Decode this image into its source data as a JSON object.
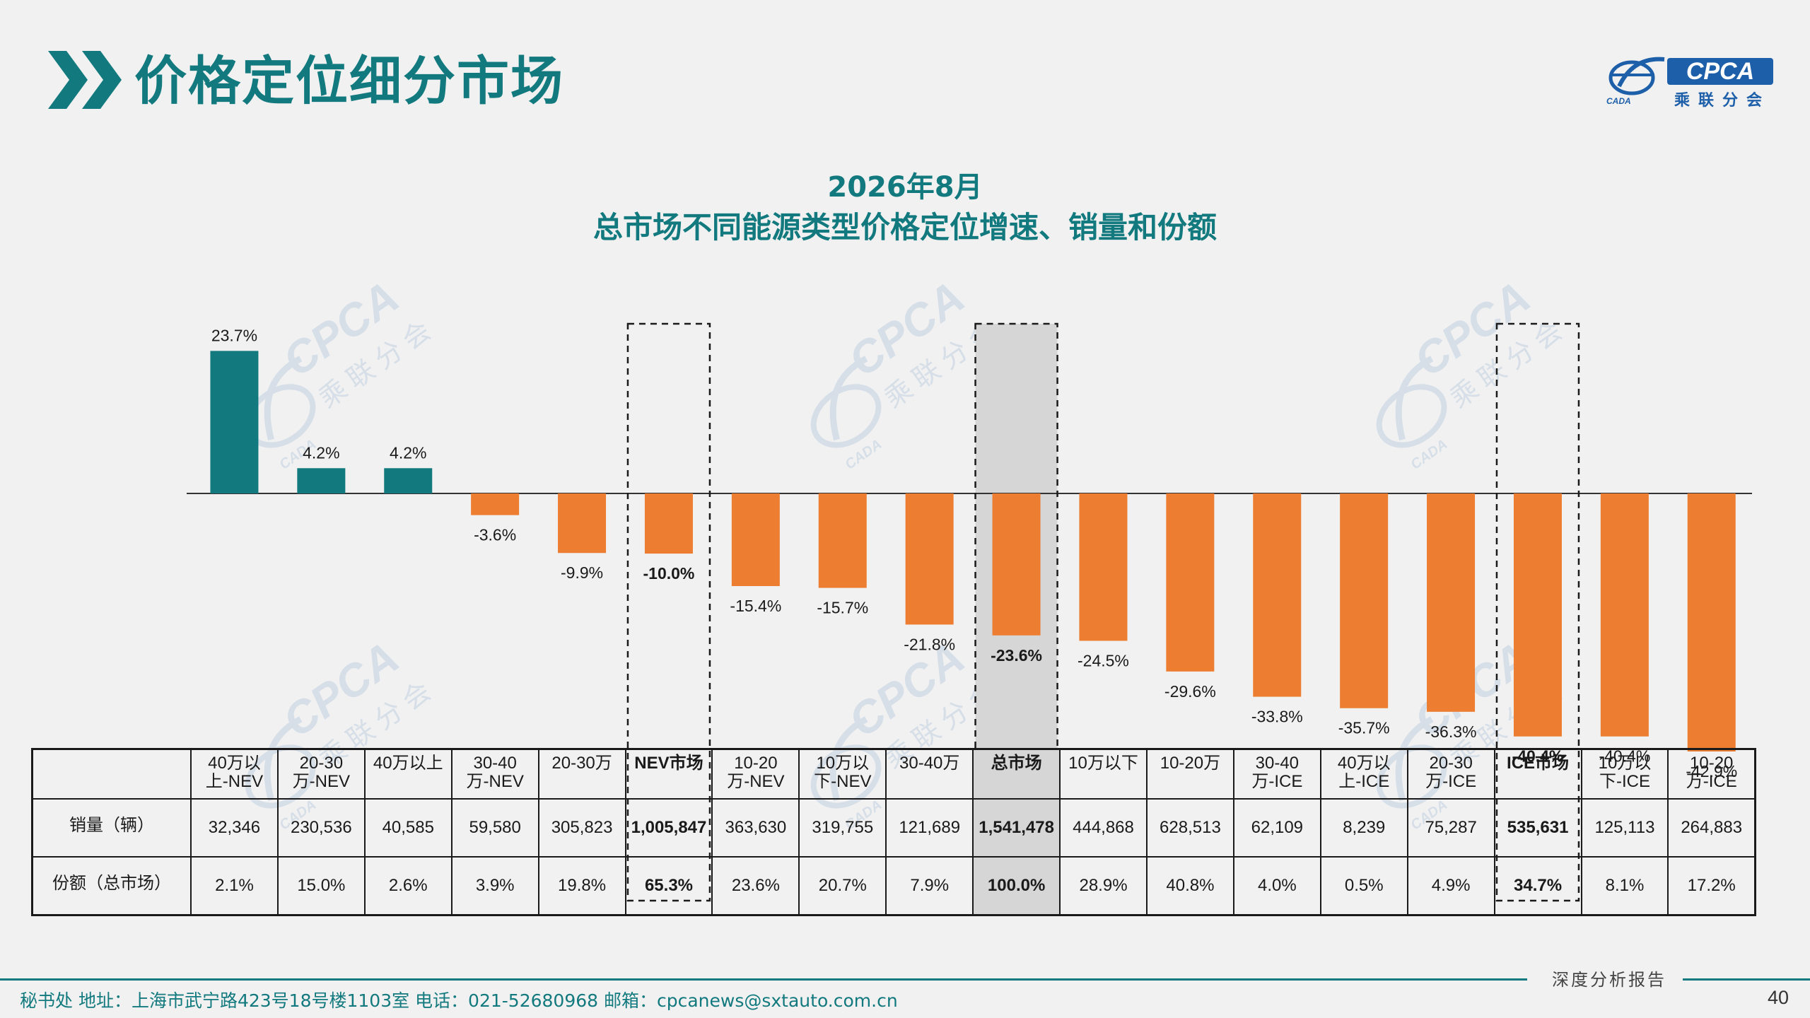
{
  "header": {
    "title": "价格定位细分市场",
    "brand": {
      "logo_text": "CPCA",
      "logo_cn": "乘联分会",
      "logo_sub": "CADA"
    }
  },
  "chart_data": {
    "type": "bar",
    "title": "2026年8月",
    "subtitle": "总市场不同能源类型价格定位增速、销量和份额",
    "categories": [
      "40万以上-NEV",
      "20-30万-NEV",
      "40万以上",
      "30-40万-NEV",
      "20-30万",
      "NEV市场",
      "10-20万-NEV",
      "10万以下-NEV",
      "30-40万",
      "总市场",
      "10万以下",
      "10-20万",
      "30-40万-ICE",
      "40万以上-ICE",
      "20-30万-ICE",
      "ICE市场",
      "10万以下-ICE",
      "10-20万-ICE"
    ],
    "values": [
      23.7,
      4.2,
      4.2,
      -3.6,
      -9.9,
      -10.0,
      -15.4,
      -15.7,
      -21.8,
      -23.6,
      -24.5,
      -29.6,
      -33.8,
      -35.7,
      -36.3,
      -40.4,
      -40.4,
      -42.9
    ],
    "labels": [
      "23.7%",
      "4.2%",
      "4.2%",
      "-3.6%",
      "-9.9%",
      "-10.0%",
      "-15.4%",
      "-15.7%",
      "-21.8%",
      "-23.6%",
      "-24.5%",
      "-29.6%",
      "-33.8%",
      "-35.7%",
      "-36.3%",
      "-40.4%",
      "-40.4%",
      "-42.9%"
    ],
    "colors": {
      "positive": "#127a7e",
      "negative": "#ed7d31",
      "axis": "#333333",
      "highlight_fill": "#d6d6d6"
    },
    "bold_indices": [
      5,
      9,
      15
    ],
    "dashed_box_indices": [
      5,
      9,
      15
    ],
    "shaded_index": 9,
    "ylim": [
      -45,
      30
    ],
    "grid": false,
    "legend": "none"
  },
  "table": {
    "headers": [
      "40万以\n上-NEV",
      "20-30\n万-NEV",
      "40万以上",
      "30-40\n万-NEV",
      "20-30万",
      "NEV市场",
      "10-20\n万-NEV",
      "10万以\n下-NEV",
      "30-40万",
      "总市场",
      "10万以下",
      "10-20万",
      "30-40\n万-ICE",
      "40万以\n上-ICE",
      "20-30\n万-ICE",
      "ICE市场",
      "10万以\n下-ICE",
      "10-20\n万-ICE"
    ],
    "rows": [
      {
        "label": "销量（辆）",
        "cells": [
          "32,346",
          "230,536",
          "40,585",
          "59,580",
          "305,823",
          "1,005,847",
          "363,630",
          "319,755",
          "121,689",
          "1,541,478",
          "444,868",
          "628,513",
          "62,109",
          "8,239",
          "75,287",
          "535,631",
          "125,113",
          "264,883"
        ]
      },
      {
        "label": "份额（总市场）",
        "cells": [
          "2.1%",
          "15.0%",
          "2.6%",
          "3.9%",
          "19.8%",
          "65.3%",
          "23.6%",
          "20.7%",
          "7.9%",
          "100.0%",
          "28.9%",
          "40.8%",
          "4.0%",
          "0.5%",
          "4.9%",
          "34.7%",
          "8.1%",
          "17.2%"
        ]
      }
    ]
  },
  "footer": {
    "address": "秘书处   地址：上海市武宁路423号18号楼1103室  电话：021-52680968   邮箱：cpcanews@sxtauto.com.cn",
    "report_label": "深度分析报告",
    "page_number": "40"
  },
  "watermark": {
    "text": "CPCA",
    "cn": "乘联分会",
    "sub": "CADA"
  }
}
